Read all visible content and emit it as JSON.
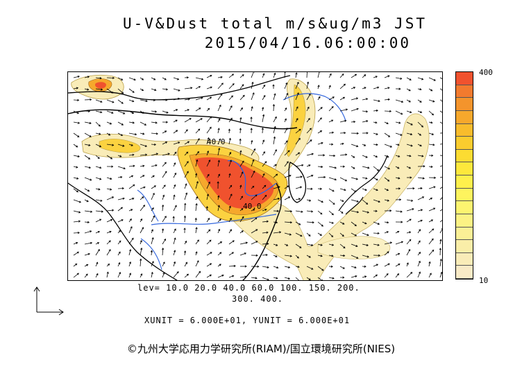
{
  "title": {
    "line1": "U-V&Dust total m/s&ug/m3 JST",
    "line2": "2015/04/16.06:00:00"
  },
  "levels": {
    "line1": "lev= 10.0 20.0 40.0 60.0 100. 150. 200.",
    "line2": "300. 400."
  },
  "units": {
    "text": "XUNIT = 6.000E+01, YUNIT = 6.000E+01"
  },
  "copyright": {
    "text": "©九州大学応用力学研究所(RIAM)/国立環境研究所(NIES)"
  },
  "colorbar": {
    "max_label": "400",
    "min_label": "10",
    "colors": [
      "#f0522e",
      "#f27a2e",
      "#f4942c",
      "#f6a82c",
      "#f8bc2c",
      "#facc2e",
      "#fcdc32",
      "#fde83c",
      "#fef04c",
      "#fef45e",
      "#fdf470",
      "#fcf284",
      "#fbf096",
      "#faeea8",
      "#f9ecb8",
      "#f8eac6"
    ]
  },
  "contour_labels": {
    "north": "40.0",
    "south": "40.0"
  },
  "colors": {
    "dust_high": "#f0522e",
    "dust_mid": "#f8c02c",
    "dust_low": "#f9ecb8",
    "river": "#3366dd",
    "border": "#000000"
  }
}
